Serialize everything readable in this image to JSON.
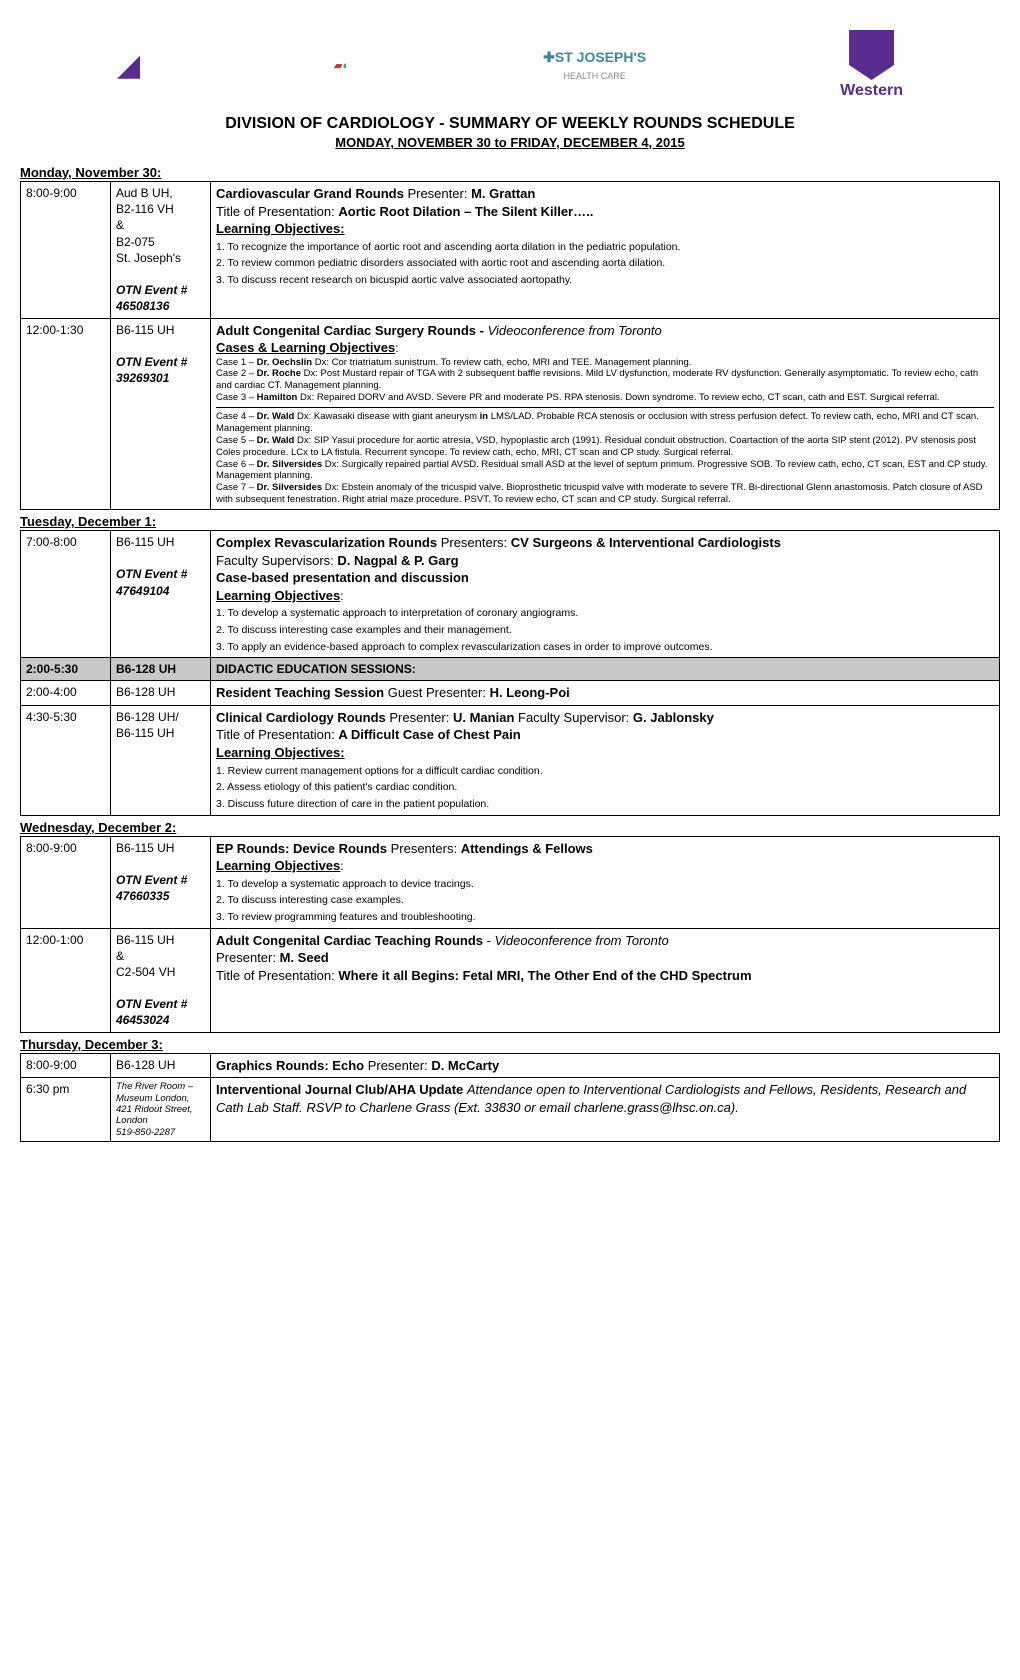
{
  "header": {
    "title": "DIVISION OF CARDIOLOGY - SUMMARY OF WEEKLY ROUNDS SCHEDULE",
    "subtitle": "MONDAY, NOVEMBER 30 to FRIDAY, DECEMBER 4, 2015",
    "logos": {
      "stjoseph": "ST JOSEPH'S",
      "stjoseph_sub": "HEALTH CARE",
      "western": "Western"
    }
  },
  "colors": {
    "border": "#000000",
    "bg": "#ffffff",
    "gray_row": "#c8c8c8",
    "purple": "#5b2c8f",
    "teal": "#3a8a9e"
  },
  "days": {
    "mon": {
      "label": "Monday, November 30",
      "rows": [
        {
          "time": "8:00-9:00",
          "loc_lines": [
            "Aud B UH,",
            "B2-116 VH",
            "&",
            "B2-075",
            "St. Joseph's"
          ],
          "otn": "OTN Event # 46508136",
          "title_prefix": "Cardiovascular Grand Rounds",
          "presenter_label": "Presenter:",
          "presenter": "M. Grattan",
          "talk_label": "Title of Presentation:",
          "talk_title": "Aortic Root Dilation – The Silent Killer…..",
          "lo_header": "Learning Objectives:",
          "objectives": [
            "1. To recognize the importance of aortic root and ascending aorta dilation in the pediatric population.",
            "2. To review common pediatric disorders associated with aortic root and ascending aorta dilation.",
            "3. To discuss recent research on bicuspid aortic valve associated aortopathy."
          ]
        },
        {
          "time": "12:00-1:30",
          "loc_lines": [
            "B6-115 UH"
          ],
          "otn": "OTN Event # 39269301",
          "title_prefix": "Adult Congenital Cardiac Surgery Rounds -",
          "title_suffix_italic": "Videoconference from Toronto",
          "lo_header": "Cases & Learning Objectives",
          "cases": [
            "Case 1 – <b>Dr. Oechslin</b>  Dx:  Cor triatriatum sunistrum.  To review cath, echo, MRI and TEE.  Management planning.",
            "Case 2 – <b>Dr. Roche</b>  Dx:  Post Mustard repair of TGA with 2 subsequent baffle revisions.  Mild LV dysfunction, moderate RV dysfunction.  Generally asymptomatic.  To review echo, cath and cardiac CT.  Management planning.",
            "Case 3 – <b>Hamilton</b>  Dx:  Repaired DORV and AVSD.  Severe PR and moderate PS.  RPA stenosis.  Down syndrome.  To review echo, CT scan, cath and EST.  Surgical referral.",
            "Case 4 – <b>Dr. Wald</b>  Dx:  Kawasaki disease with giant aneurysm <b>in</b> LMS/LAD.  Probable RCA stenosis or occlusion with stress perfusion defect.  To review cath, echo, MRI and CT scan.  Management planning.",
            "Case 5 – <b>Dr. Wald</b>  Dx:  SIP Yasui procedure for aortic atresia, VSD, hypoplastic arch (1991).  Residual conduit obstruction.  Coartaction of the aorta SIP stent (2012).  PV stenosis post Coles procedure.  LCx to LA fistula.  Recurrent syncope.  To review cath, echo, MRI, CT scan and CP study.  Surgical referral.",
            "Case 6 – <b>Dr. Silversides</b>  Dx:  Surgically repaired partial AVSD.  Residual small ASD at the level of septum primum.  Progressive SOB.  To review cath, echo, CT scan, EST and CP study.  Management planning.",
            "Case 7 – <b>Dr. Silversides</b>  Dx:  Ebstein anomaly of the tricuspid valve.  Bioprosthetic tricuspid valve with moderate to severe TR.  Bi-directional Glenn anastomosis.  Patch closure of ASD with subsequent fenestration.  Right atrial maze procedure.  PSVT.           To review echo, CT scan and CP study.  Surgical referral."
          ]
        }
      ]
    },
    "tue": {
      "label": "Tuesday, December 1",
      "rows": [
        {
          "time": "7:00-8:00",
          "loc_lines": [
            "B6-115 UH"
          ],
          "otn": "OTN Event # 47649104",
          "title_prefix": "Complex Revascularization Rounds",
          "presenter_label": "Presenters:",
          "presenter": "CV Surgeons & Interventional Cardiologists",
          "supervisor_label": "Faculty Supervisors:",
          "supervisor": "D. Nagpal & P. Garg",
          "subtitle_bold": "Case-based presentation and discussion",
          "lo_header": "Learning Objectives",
          "objectives": [
            "1.  To develop a systematic approach to interpretation of coronary angiograms.",
            "2.  To discuss interesting case examples and their management.",
            "3.  To apply an evidence-based approach to complex revascularization cases in order to improve outcomes."
          ]
        },
        {
          "time": "2:00-5:30",
          "loc_lines": [
            "B6-128 UH"
          ],
          "gray_title": "DIDACTIC EDUCATION SESSIONS:"
        },
        {
          "time": "2:00-4:00",
          "loc_lines": [
            "B6-128 UH"
          ],
          "line1_prefix": "Resident Teaching Session",
          "line1_label": "Guest Presenter:",
          "line1_name": "H. Leong-Poi"
        },
        {
          "time": "4:30-5:30",
          "loc_lines": [
            "B6-128 UH/",
            "B6-115 UH"
          ],
          "title_prefix": "Clinical Cardiology Rounds",
          "presenter_label": "Presenter:",
          "presenter": "U. Manian",
          "supervisor_label": "Faculty Supervisor:",
          "supervisor": "G. Jablonsky",
          "talk_label": "Title of Presentation:",
          "talk_title": "A Difficult Case of  Chest Pain",
          "lo_header": "Learning Objectives:",
          "objectives": [
            "1.  Review current management options for a difficult cardiac condition.",
            "2.  Assess etiology of this patient's cardiac condition.",
            "3.  Discuss future direction of care in the patient population."
          ]
        }
      ]
    },
    "wed": {
      "label": "Wednesday, December 2",
      "rows": [
        {
          "time": "8:00-9:00",
          "loc_lines": [
            "B6-115 UH"
          ],
          "otn": "OTN Event # 47660335",
          "title_prefix": "EP Rounds:  Device Rounds",
          "presenter_label": "Presenters:",
          "presenter": "Attendings & Fellows",
          "lo_header": "Learning Objectives",
          "objectives": [
            "1.  To develop a systematic approach to device tracings.",
            "2.  To discuss interesting case examples.",
            "3.  To review programming features and troubleshooting."
          ]
        },
        {
          "time": "12:00-1:00",
          "loc_lines": [
            "B6-115 UH",
            "&",
            "C2-504 VH"
          ],
          "otn": "OTN Event # 46453024",
          "title_prefix": "Adult Congenital Cardiac Teaching Rounds",
          "title_dash": " - ",
          "title_suffix_italic": "Videoconference from Toronto",
          "presenter_label": "Presenter:",
          "presenter": "M. Seed",
          "talk_label": "Title of Presentation:",
          "talk_title": "Where it all Begins:  Fetal MRI, The Other End of the CHD Spectrum"
        }
      ]
    },
    "thu": {
      "label": "Thursday, December 3",
      "rows": [
        {
          "time": "8:00-9:00",
          "loc_lines": [
            "B6-128 UH"
          ],
          "title_prefix": "Graphics Rounds:  Echo",
          "presenter_label": "Presenter:",
          "presenter": "D. McCarty"
        },
        {
          "time": "6:30 pm",
          "loc_tiny": [
            "The River Room –",
            "Museum London,",
            "421 Ridout Street,",
            "London",
            "519-850-2287"
          ],
          "title_prefix": "Interventional Journal Club/AHA Update",
          "title_tail_italic": "Attendance open to Interventional Cardiologists and Fellows, Residents, Research and Cath Lab Staff.  RSVP to Charlene Grass (Ext. 33830 or email charlene.grass@lhsc.on.ca)."
        }
      ]
    }
  }
}
